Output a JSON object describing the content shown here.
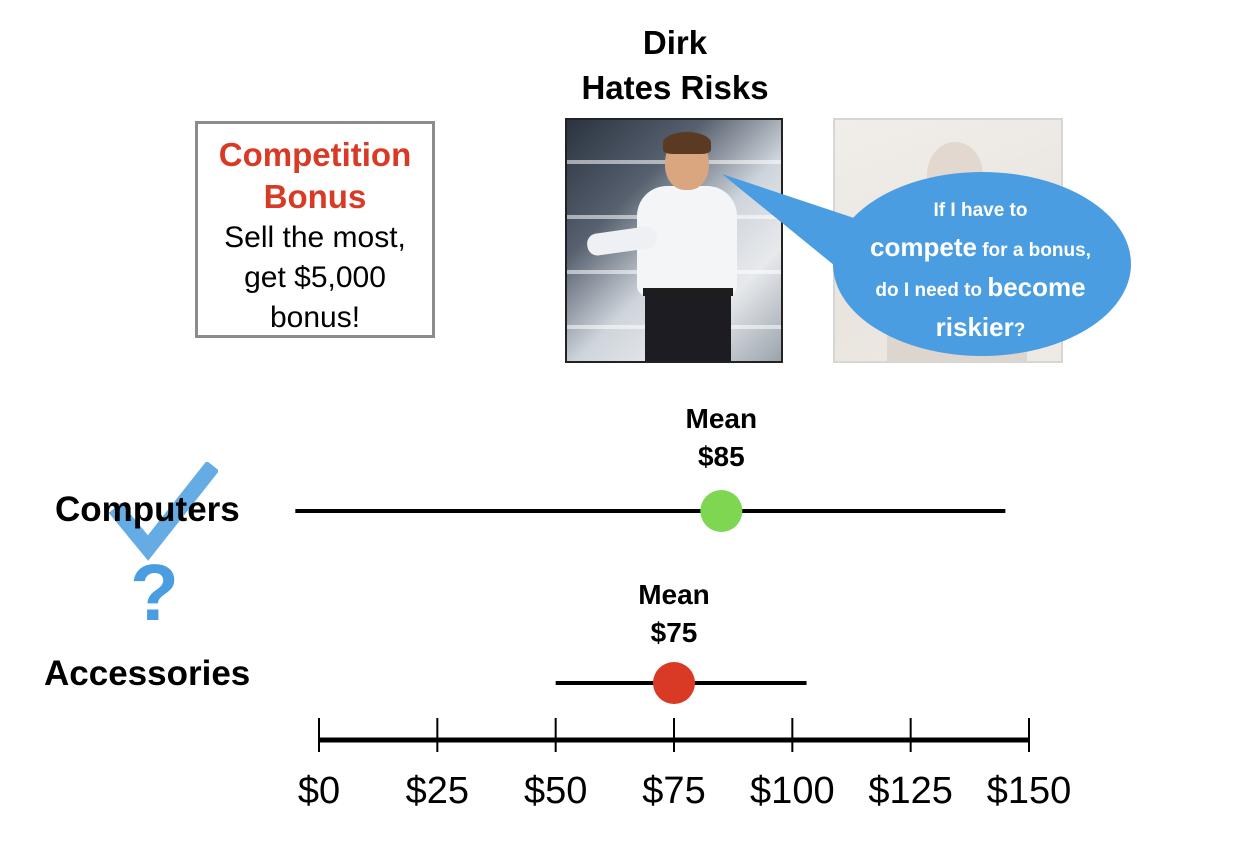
{
  "title": {
    "line1": "Dirk",
    "line2": "Hates Risks"
  },
  "bonus_box": {
    "title_line1": "Competition",
    "title_line2": "Bonus",
    "body_line1": "Sell the most,",
    "body_line2": "get $5,000",
    "body_line3": "bonus!",
    "title_color": "#d93a26",
    "border_color": "#8c8c8c"
  },
  "speech_bubble": {
    "line1": "If I have to",
    "line2_strong": "compete",
    "line2_rest": " for a bonus,",
    "line3_lead": "do I need to ",
    "line3_strong": "become",
    "line4_strong": "riskier",
    "line4_end": "?",
    "color": "#4a9de0"
  },
  "icons": {
    "check": "checkmark-icon",
    "question": "question-mark-icon",
    "question_text": "?"
  },
  "rows": {
    "computers_label": "Computers",
    "accessories_label": "Accessories"
  },
  "chart_data": {
    "type": "scatter",
    "title": "",
    "xlabel": "",
    "ylabel": "",
    "xlim": [
      0,
      150
    ],
    "x_ticks": [
      0,
      25,
      50,
      75,
      100,
      125,
      150
    ],
    "x_tick_labels": [
      "$0",
      "$25",
      "$50",
      "$75",
      "$100",
      "$125",
      "$150"
    ],
    "grid": false,
    "series": [
      {
        "name": "Computers",
        "mean": 85,
        "range": [
          -5,
          145
        ],
        "color": "#7ed651",
        "mean_label_line1": "Mean",
        "mean_label_line2": "$85"
      },
      {
        "name": "Accessories",
        "mean": 75,
        "range": [
          50,
          103
        ],
        "color": "#d93a26",
        "mean_label_line1": "Mean",
        "mean_label_line2": "$75"
      }
    ]
  }
}
